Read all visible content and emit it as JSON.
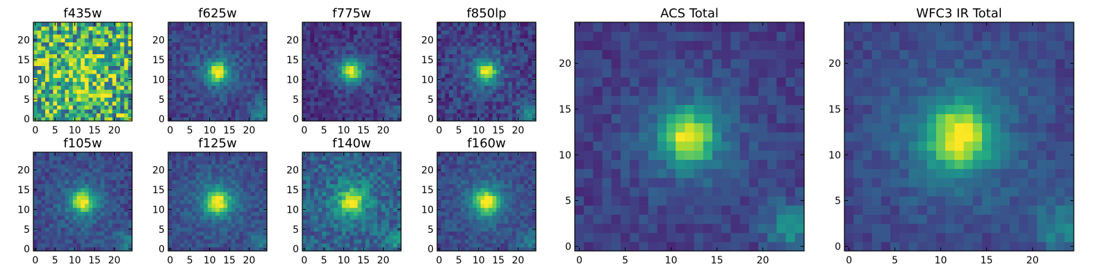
{
  "chart_data": {
    "type": "heatmap",
    "colormap": "viridis",
    "grid_size": 25,
    "xlim": [
      0,
      24
    ],
    "ylim": [
      0,
      24
    ],
    "panels": [
      {
        "title": "f435w",
        "xticks": [
          "0",
          "5",
          "10",
          "15",
          "20"
        ],
        "yticks": [
          "0",
          "5",
          "10",
          "15",
          "20"
        ],
        "peak": {
          "x": 12,
          "y": 12
        },
        "sigma": 2.2,
        "noise": 0.38,
        "background": 0.62,
        "amplitude": 0.45,
        "corner_glow": 0.0
      },
      {
        "title": "f625w",
        "xticks": [
          "0",
          "5",
          "10",
          "15",
          "20"
        ],
        "yticks": [
          "0",
          "5",
          "10",
          "15",
          "20"
        ],
        "peak": {
          "x": 12,
          "y": 12
        },
        "sigma": 1.7,
        "noise": 0.1,
        "background": 0.2,
        "amplitude": 0.85,
        "corner_glow": 0.25
      },
      {
        "title": "f775w",
        "xticks": [
          "0",
          "5",
          "10",
          "15",
          "20"
        ],
        "yticks": [
          "0",
          "5",
          "10",
          "15",
          "20"
        ],
        "peak": {
          "x": 12,
          "y": 12
        },
        "sigma": 1.7,
        "noise": 0.1,
        "background": 0.15,
        "amplitude": 0.85,
        "corner_glow": 0.15
      },
      {
        "title": "f850lp",
        "xticks": [
          "0",
          "5",
          "10",
          "15",
          "20"
        ],
        "yticks": [
          "0",
          "5",
          "10",
          "15",
          "20"
        ],
        "peak": {
          "x": 12,
          "y": 12
        },
        "sigma": 1.7,
        "noise": 0.12,
        "background": 0.18,
        "amplitude": 0.85,
        "corner_glow": 0.3
      },
      {
        "title": "f105w",
        "xticks": [
          "0",
          "5",
          "10",
          "15",
          "20"
        ],
        "yticks": [
          "0",
          "5",
          "10",
          "15",
          "20"
        ],
        "peak": {
          "x": 12,
          "y": 12
        },
        "sigma": 1.9,
        "noise": 0.1,
        "background": 0.22,
        "amplitude": 0.85,
        "corner_glow": 0.2
      },
      {
        "title": "f125w",
        "xticks": [
          "0",
          "5",
          "10",
          "15",
          "20"
        ],
        "yticks": [
          "0",
          "5",
          "10",
          "15",
          "20"
        ],
        "peak": {
          "x": 12,
          "y": 12
        },
        "sigma": 2.1,
        "noise": 0.09,
        "background": 0.22,
        "amplitude": 0.85,
        "corner_glow": 0.2
      },
      {
        "title": "f140w",
        "xticks": [
          "0",
          "5",
          "10",
          "15",
          "20"
        ],
        "yticks": [
          "0",
          "5",
          "10",
          "15",
          "20"
        ],
        "peak": {
          "x": 12,
          "y": 12
        },
        "sigma": 2.1,
        "noise": 0.14,
        "background": 0.3,
        "amplitude": 0.75,
        "corner_glow": 0.2
      },
      {
        "title": "f160w",
        "xticks": [
          "0",
          "5",
          "10",
          "15",
          "20"
        ],
        "yticks": [
          "0",
          "5",
          "10",
          "15",
          "20"
        ],
        "peak": {
          "x": 12,
          "y": 12
        },
        "sigma": 2.1,
        "noise": 0.09,
        "background": 0.22,
        "amplitude": 0.85,
        "corner_glow": 0.2
      },
      {
        "title": "ACS Total",
        "xticks": [
          "0",
          "5",
          "10",
          "15",
          "20"
        ],
        "yticks": [
          "0",
          "5",
          "10",
          "15",
          "20"
        ],
        "peak": {
          "x": 12,
          "y": 12
        },
        "sigma": 1.9,
        "noise": 0.08,
        "background": 0.18,
        "amplitude": 0.85,
        "corner_glow": 0.3
      },
      {
        "title": "WFC3 IR Total",
        "xticks": [
          "0",
          "5",
          "10",
          "15",
          "20"
        ],
        "yticks": [
          "0",
          "5",
          "10",
          "15",
          "20"
        ],
        "peak": {
          "x": 12,
          "y": 12
        },
        "sigma": 2.4,
        "noise": 0.07,
        "background": 0.2,
        "amplitude": 0.85,
        "corner_glow": 0.25
      }
    ]
  }
}
